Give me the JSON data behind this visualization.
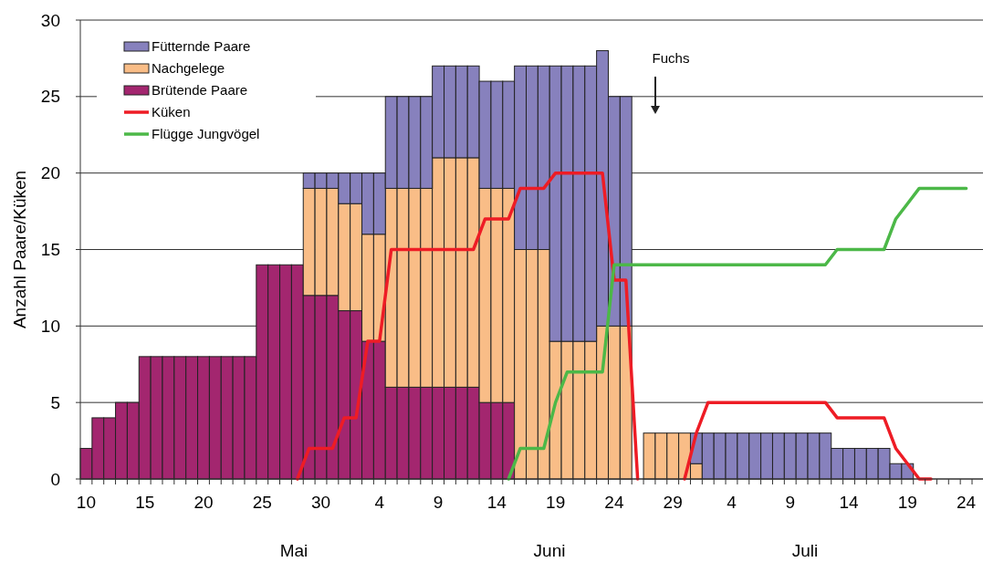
{
  "chart_data": {
    "type": "bar",
    "stacked": true,
    "ylabel": "Anzahl Paare/Küken",
    "ylim": [
      0,
      30
    ],
    "yticks": [
      0,
      5,
      10,
      15,
      20,
      25,
      30
    ],
    "grid": "y",
    "legend": "top left",
    "categories": [
      "10",
      null,
      null,
      null,
      null,
      "15",
      null,
      null,
      null,
      null,
      "20",
      null,
      null,
      null,
      null,
      "25",
      null,
      null,
      null,
      null,
      "30",
      null,
      null,
      null,
      null,
      "4",
      null,
      null,
      null,
      null,
      "9",
      null,
      null,
      null,
      null,
      "14",
      null,
      null,
      null,
      null,
      "19",
      null,
      null,
      null,
      null,
      "24",
      null,
      null,
      null,
      null,
      "29",
      null,
      null,
      null,
      null,
      "4",
      null,
      null,
      null,
      null,
      "9",
      null,
      null,
      null,
      null,
      "14",
      null,
      null,
      null,
      null,
      "19",
      null,
      null,
      null,
      null,
      "24"
    ],
    "series": [
      {
        "name": "Brütende Paare",
        "color": "#a3266f",
        "values": [
          2,
          4,
          4,
          5,
          5,
          8,
          8,
          8,
          8,
          8,
          8,
          8,
          8,
          8,
          8,
          14,
          14,
          14,
          14,
          12,
          12,
          12,
          11,
          11,
          9,
          9,
          6,
          6,
          6,
          6,
          6,
          6,
          6,
          6,
          5,
          5,
          5,
          null,
          null,
          null,
          null,
          null,
          null,
          null,
          null,
          null,
          null,
          null,
          null,
          null,
          null,
          null,
          null,
          null,
          null,
          null,
          null,
          null,
          null,
          null,
          null,
          null,
          null,
          null,
          null,
          null,
          null,
          null,
          null,
          null,
          null,
          null,
          null,
          null,
          null,
          null
        ]
      },
      {
        "name": "Nachgelege",
        "color": "#f9bd87",
        "values": [
          null,
          null,
          null,
          null,
          null,
          null,
          null,
          null,
          null,
          null,
          null,
          null,
          null,
          null,
          null,
          null,
          null,
          null,
          null,
          7,
          7,
          7,
          7,
          7,
          7,
          7,
          13,
          13,
          13,
          13,
          15,
          15,
          15,
          15,
          14,
          14,
          14,
          15,
          15,
          15,
          9,
          9,
          9,
          9,
          10,
          10,
          10,
          null,
          3,
          3,
          3,
          3,
          1,
          null,
          null,
          null,
          null,
          null,
          null,
          null,
          null,
          null,
          null,
          null,
          null,
          null,
          null,
          null,
          null,
          null,
          null,
          null,
          null,
          null,
          null,
          null
        ]
      },
      {
        "name": "Fütternde Paare",
        "color": "#8781bd",
        "values": [
          null,
          null,
          null,
          null,
          null,
          null,
          null,
          null,
          null,
          null,
          null,
          null,
          null,
          null,
          null,
          null,
          null,
          null,
          null,
          1,
          1,
          1,
          2,
          2,
          4,
          4,
          6,
          6,
          6,
          6,
          6,
          6,
          6,
          6,
          7,
          7,
          7,
          12,
          12,
          12,
          18,
          18,
          18,
          18,
          18,
          15,
          15,
          null,
          null,
          null,
          null,
          null,
          2,
          3,
          3,
          3,
          3,
          3,
          3,
          3,
          3,
          3,
          3,
          3,
          2,
          2,
          2,
          2,
          2,
          1,
          1,
          null,
          null,
          null,
          null,
          null
        ]
      },
      {
        "name": "Küken",
        "type": "line",
        "color": "#ee1c25",
        "values": [
          null,
          null,
          null,
          null,
          null,
          null,
          null,
          null,
          null,
          null,
          null,
          null,
          null,
          null,
          null,
          null,
          null,
          null,
          0,
          2,
          2,
          2,
          4,
          4,
          9,
          9,
          15,
          15,
          15,
          15,
          15,
          15,
          15,
          15,
          17,
          17,
          17,
          19,
          19,
          19,
          20,
          20,
          20,
          20,
          20,
          13,
          13,
          0,
          null,
          null,
          null,
          0,
          3,
          5,
          5,
          5,
          5,
          5,
          5,
          5,
          5,
          5,
          5,
          5,
          4,
          4,
          4,
          4,
          4,
          2,
          1,
          0,
          0,
          null,
          null,
          null
        ]
      },
      {
        "name": "Flügge Jungvögel",
        "type": "line",
        "color": "#4cb848",
        "values": [
          null,
          null,
          null,
          null,
          null,
          null,
          null,
          null,
          null,
          null,
          null,
          null,
          null,
          null,
          null,
          null,
          null,
          null,
          null,
          null,
          null,
          null,
          null,
          null,
          null,
          null,
          null,
          null,
          null,
          null,
          null,
          null,
          null,
          null,
          null,
          null,
          0,
          2,
          2,
          2,
          5,
          7,
          7,
          7,
          7,
          14,
          14,
          14,
          14,
          14,
          14,
          14,
          14,
          14,
          14,
          14,
          14,
          14,
          14,
          14,
          14,
          14,
          14,
          14,
          15,
          15,
          15,
          15,
          15,
          17,
          18,
          19,
          19,
          19,
          19,
          19
        ]
      }
    ],
    "annotations": [
      "Fuchs",
      "Mai",
      "Juni",
      "Juli"
    ]
  }
}
